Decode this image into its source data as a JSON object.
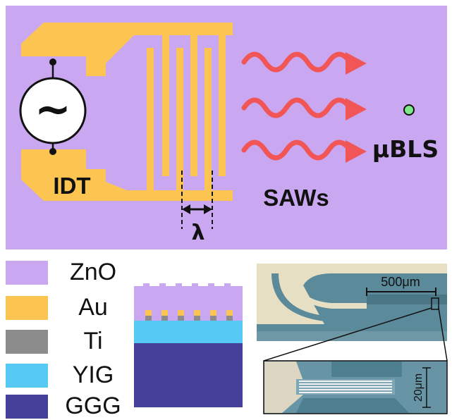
{
  "colors": {
    "zno": "#c9a8f1",
    "au": "#fcc552",
    "ti": "#8c8c8c",
    "yig": "#55c8f3",
    "ggg": "#44409a",
    "wave": "#f25555",
    "spot": "#7de88a"
  },
  "schematic": {
    "idt_label": "IDT",
    "saw_label": "SAWs",
    "bls_label": "μBLS",
    "lambda_label": "λ",
    "source_symbol": "~"
  },
  "legend": [
    {
      "label": "ZnO",
      "color": "#c9a8f1"
    },
    {
      "label": "Au",
      "color": "#fcc552"
    },
    {
      "label": "Ti",
      "color": "#8c8c8c"
    },
    {
      "label": "YIG",
      "color": "#55c8f3"
    },
    {
      "label": "GGG",
      "color": "#44409a"
    }
  ],
  "micrograph": {
    "scale_top": "500μm",
    "scale_inset": "20μm"
  }
}
